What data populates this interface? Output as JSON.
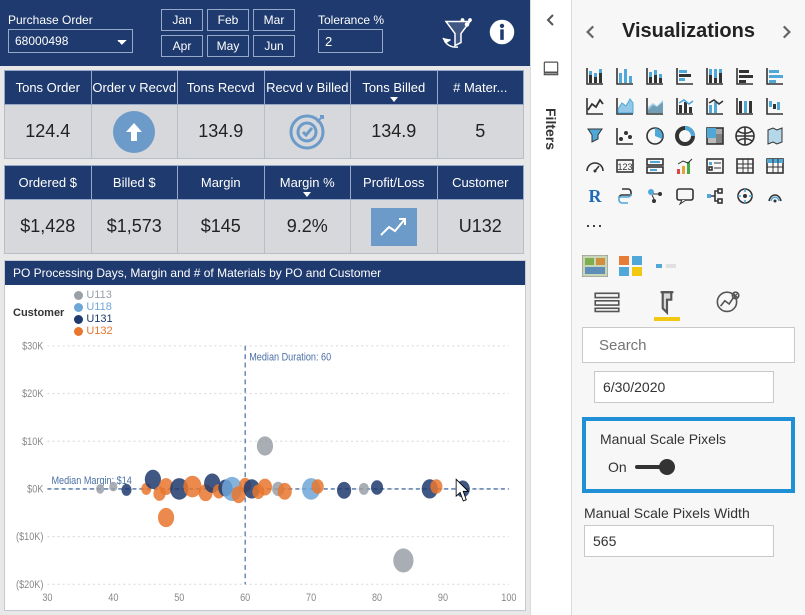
{
  "header": {
    "po_label": "Purchase Order",
    "po_value": "68000498",
    "months": [
      "Jan",
      "Feb",
      "Mar",
      "Apr",
      "May",
      "Jun"
    ],
    "tolerance_label": "Tolerance %",
    "tolerance_value": "2"
  },
  "table1": {
    "headers": [
      "Tons Order",
      "Order v Recvd",
      "Tons Recvd",
      "Recvd v Billed",
      "Tons Billed",
      "# Mater..."
    ],
    "sort_col": 4,
    "cells": {
      "tons_order": "124.4",
      "tons_recvd": "134.9",
      "tons_billed": "134.9",
      "materials": "5"
    }
  },
  "table2": {
    "headers": [
      "Ordered $",
      "Billed $",
      "Margin",
      "Margin %",
      "Profit/Loss",
      "Customer"
    ],
    "sort_col": 3,
    "cells": {
      "ordered": "$1,428",
      "billed": "$1,573",
      "margin": "$145",
      "margin_pct": "9.2%",
      "customer": "U132"
    }
  },
  "chart": {
    "title": "PO Processing Days, Margin and # of Materials by PO and Customer",
    "legend_label": "Customer",
    "series": [
      {
        "name": "U113",
        "color": "#9aa0a8"
      },
      {
        "name": "U118",
        "color": "#6ea6d8"
      },
      {
        "name": "U131",
        "color": "#1f3a6e"
      },
      {
        "name": "U132",
        "color": "#e8762d"
      }
    ],
    "median_margin_label": "Median Margin: $14",
    "median_duration_label": "Median Duration: 60",
    "x": {
      "min": 30,
      "max": 100,
      "ticks": [
        30,
        40,
        50,
        60,
        70,
        80,
        90,
        100
      ]
    },
    "y": {
      "min": -20000,
      "max": 30000,
      "ticks": [
        "$30K",
        "$20K",
        "$10K",
        "$0K",
        "($10K)",
        "($20K)"
      ]
    },
    "median_x": 60,
    "median_y": 0,
    "points": [
      {
        "x": 38,
        "y": 0,
        "r": 4,
        "c": "#9aa0a8"
      },
      {
        "x": 40,
        "y": 500,
        "r": 4,
        "c": "#9aa0a8"
      },
      {
        "x": 42,
        "y": -200,
        "r": 5,
        "c": "#1f3a6e"
      },
      {
        "x": 45,
        "y": 0,
        "r": 5,
        "c": "#e8762d"
      },
      {
        "x": 46,
        "y": 2000,
        "r": 8,
        "c": "#1f3a6e"
      },
      {
        "x": 47,
        "y": -1000,
        "r": 6,
        "c": "#e8762d"
      },
      {
        "x": 48,
        "y": 500,
        "r": 7,
        "c": "#e8762d"
      },
      {
        "x": 48,
        "y": -6000,
        "r": 8,
        "c": "#e8762d"
      },
      {
        "x": 50,
        "y": 0,
        "r": 9,
        "c": "#1f3a6e"
      },
      {
        "x": 52,
        "y": 500,
        "r": 9,
        "c": "#e8762d"
      },
      {
        "x": 54,
        "y": -800,
        "r": 7,
        "c": "#e8762d"
      },
      {
        "x": 55,
        "y": 1200,
        "r": 8,
        "c": "#1f3a6e"
      },
      {
        "x": 56,
        "y": -500,
        "r": 6,
        "c": "#e8762d"
      },
      {
        "x": 57,
        "y": 200,
        "r": 7,
        "c": "#1f3a6e"
      },
      {
        "x": 58,
        "y": 0,
        "r": 10,
        "c": "#6ea6d8"
      },
      {
        "x": 59,
        "y": -1200,
        "r": 7,
        "c": "#e8762d"
      },
      {
        "x": 60,
        "y": 800,
        "r": 6,
        "c": "#e8762d"
      },
      {
        "x": 61,
        "y": 0,
        "r": 8,
        "c": "#1f3a6e"
      },
      {
        "x": 62,
        "y": -600,
        "r": 6,
        "c": "#e8762d"
      },
      {
        "x": 63,
        "y": 400,
        "r": 7,
        "c": "#e8762d"
      },
      {
        "x": 63,
        "y": 9000,
        "r": 8,
        "c": "#9aa0a8"
      },
      {
        "x": 65,
        "y": 0,
        "r": 6,
        "c": "#9aa0a8"
      },
      {
        "x": 66,
        "y": -500,
        "r": 7,
        "c": "#e8762d"
      },
      {
        "x": 70,
        "y": 0,
        "r": 9,
        "c": "#6ea6d8"
      },
      {
        "x": 71,
        "y": 500,
        "r": 6,
        "c": "#e8762d"
      },
      {
        "x": 75,
        "y": -300,
        "r": 7,
        "c": "#1f3a6e"
      },
      {
        "x": 78,
        "y": 0,
        "r": 5,
        "c": "#9aa0a8"
      },
      {
        "x": 80,
        "y": 300,
        "r": 6,
        "c": "#1f3a6e"
      },
      {
        "x": 84,
        "y": -15000,
        "r": 10,
        "c": "#9aa0a8"
      },
      {
        "x": 88,
        "y": 0,
        "r": 8,
        "c": "#1f3a6e"
      },
      {
        "x": 89,
        "y": 500,
        "r": 6,
        "c": "#e8762d"
      },
      {
        "x": 93,
        "y": 0,
        "r": 7,
        "c": "#1f3a6e"
      }
    ]
  },
  "filters": {
    "label": "Filters"
  },
  "vis": {
    "title": "Visualizations",
    "search_placeholder": "Search",
    "date_value": "6/30/2020",
    "manual_scale_label": "Manual Scale Pixels",
    "toggle_label": "On",
    "width_label": "Manual Scale Pixels Width",
    "width_value": "565"
  },
  "colors": {
    "brand_dark": "#1f3a6e",
    "cell_bg": "#d6d8dc",
    "accent_blue": "#1f8fd6",
    "accent_yellow": "#f2c811"
  }
}
